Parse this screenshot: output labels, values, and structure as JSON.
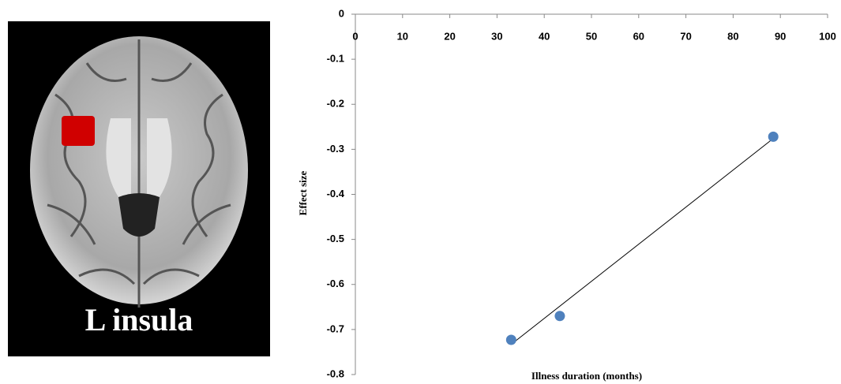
{
  "panel_label": "L insula",
  "chart_data": {
    "type": "scatter",
    "x_label": "Illness duration (months)",
    "y_label": "Effect size",
    "xlim": [
      0,
      100
    ],
    "xticks": [
      0,
      10,
      20,
      30,
      40,
      50,
      60,
      70,
      80,
      90,
      100
    ],
    "ylim": [
      -0.8,
      0
    ],
    "yticks": [
      0,
      -0.1,
      -0.2,
      -0.3,
      -0.4,
      -0.5,
      -0.6,
      -0.7,
      -0.8
    ],
    "color": "#4f81bd",
    "x": [
      33,
      43.3,
      88.5
    ],
    "values": [
      -0.723,
      -0.67,
      -0.272
    ],
    "trendline": {
      "x": [
        33,
        88.5
      ],
      "values": [
        -0.733,
        -0.276
      ],
      "color": "#000000"
    }
  }
}
